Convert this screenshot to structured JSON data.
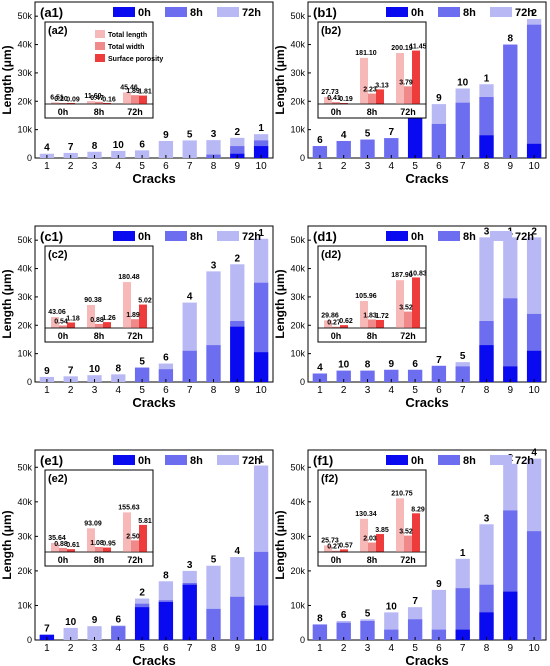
{
  "colors": {
    "c0h": "#0a0af0",
    "c8h": "#6d6df0",
    "c72h": "#b8b8f5",
    "insetLen": "#f7b8b8",
    "insetWid": "#f08a8a",
    "insetPor": "#ee3b3b"
  },
  "legend": [
    "0h",
    "8h",
    "72h"
  ],
  "insetLegend": [
    "Total length",
    "Total width",
    "Surface porosity"
  ],
  "xlabel": "Cracks",
  "ylabel": "Length (μm)",
  "yticks": [
    "0",
    "10k",
    "20k",
    "30k",
    "40k",
    "50k"
  ],
  "chart_data": [
    {
      "type": "bar",
      "panel": "(a1)",
      "ylim": [
        0,
        55000
      ],
      "categories": [
        "1",
        "2",
        "3",
        "4",
        "5",
        "6",
        "7",
        "8",
        "9",
        "10"
      ],
      "series": [
        {
          "name": "0h",
          "values": [
            0,
            0,
            0,
            0,
            0,
            0,
            0,
            0,
            1500,
            4200
          ]
        },
        {
          "name": "8h",
          "values": [
            0,
            0,
            0,
            0,
            0,
            0,
            0,
            1200,
            4200,
            6200
          ]
        },
        {
          "name": "72h",
          "values": [
            1500,
            1800,
            2200,
            2500,
            2700,
            6000,
            6200,
            6300,
            7100,
            8400
          ]
        }
      ],
      "labels": [
        "4",
        "7",
        "8",
        "10",
        "6",
        "9",
        "5",
        "3",
        "2",
        "1"
      ],
      "inset": {
        "title": "(a2)",
        "groups": [
          "0h",
          "8h",
          "72h"
        ],
        "values": [
          [
            6.51,
            0.2,
            0.09
          ],
          [
            11.6,
            0.47,
            0.16
          ],
          [
            45.46,
            1.89,
            1.81
          ]
        ],
        "labels": [
          [
            "6.51",
            "0.20",
            "0.09"
          ],
          [
            "11.60",
            "0.47",
            "0.16"
          ],
          [
            "45.46",
            "1.89",
            "1.81"
          ]
        ],
        "legend": true
      }
    },
    {
      "type": "bar",
      "panel": "(b1)",
      "ylim": [
        0,
        55000
      ],
      "categories": [
        "1",
        "2",
        "3",
        "4",
        "5",
        "6",
        "7",
        "8",
        "9",
        "10"
      ],
      "series": [
        {
          "name": "0h",
          "values": [
            0,
            0,
            0,
            0,
            14000,
            0,
            0,
            8000,
            0,
            5000
          ]
        },
        {
          "name": "8h",
          "values": [
            4200,
            6000,
            6500,
            7000,
            16000,
            12000,
            19500,
            21500,
            40000,
            47000
          ]
        },
        {
          "name": "72h",
          "values": [
            4200,
            6000,
            6500,
            7000,
            16500,
            19000,
            24500,
            26000,
            40000,
            49000
          ]
        }
      ],
      "labels": [
        "6",
        "4",
        "5",
        "7",
        "3",
        "9",
        "10",
        "1",
        "8",
        "2"
      ],
      "inset": {
        "title": "(b2)",
        "groups": [
          "0h",
          "8h",
          "72h"
        ],
        "values": [
          [
            27.73,
            0.41,
            0.19
          ],
          [
            181.1,
            2.23,
            3.13
          ],
          [
            200.19,
            3.79,
            11.45
          ]
        ],
        "labels": [
          [
            "27.73",
            "0.41",
            "0.19"
          ],
          [
            "181.10",
            "2.23",
            "3.13"
          ],
          [
            "200.19",
            "3.79",
            "11.45"
          ]
        ],
        "legend": false
      }
    },
    {
      "type": "bar",
      "panel": "(c1)",
      "ylim": [
        0,
        55000
      ],
      "categories": [
        "1",
        "2",
        "3",
        "4",
        "5",
        "6",
        "7",
        "8",
        "9",
        "10"
      ],
      "series": [
        {
          "name": "0h",
          "values": [
            0,
            0,
            0,
            0,
            0,
            0,
            0,
            0,
            19500,
            10500
          ]
        },
        {
          "name": "8h",
          "values": [
            0,
            0,
            0,
            0,
            5000,
            4500,
            11000,
            13000,
            21500,
            35000
          ]
        },
        {
          "name": "72h",
          "values": [
            1800,
            2000,
            2400,
            2700,
            5200,
            6500,
            28000,
            39000,
            41500,
            50500
          ]
        }
      ],
      "labels": [
        "9",
        "7",
        "10",
        "8",
        "5",
        "6",
        "4",
        "3",
        "2",
        "1"
      ],
      "inset": {
        "title": "(c2)",
        "groups": [
          "0h",
          "8h",
          "72h"
        ],
        "values": [
          [
            43.06,
            0.54,
            1.18
          ],
          [
            90.38,
            0.88,
            1.26
          ],
          [
            180.48,
            1.89,
            5.02
          ]
        ],
        "labels": [
          [
            "43.06",
            "0.54",
            "1.18"
          ],
          [
            "90.38",
            "0.88",
            "1.26"
          ],
          [
            "180.48",
            "1.89",
            "5.02"
          ]
        ],
        "legend": false
      }
    },
    {
      "type": "bar",
      "panel": "(d1)",
      "ylim": [
        0,
        55000
      ],
      "categories": [
        "1",
        "2",
        "3",
        "4",
        "5",
        "6",
        "7",
        "8",
        "9",
        "10"
      ],
      "series": [
        {
          "name": "0h",
          "values": [
            0,
            0,
            0,
            0,
            0,
            0,
            0,
            13000,
            5500,
            11000
          ]
        },
        {
          "name": "8h",
          "values": [
            3000,
            4000,
            4000,
            4300,
            4300,
            5700,
            5500,
            21500,
            29500,
            24000
          ]
        },
        {
          "name": "72h",
          "values": [
            3000,
            4000,
            4000,
            4300,
            4300,
            5700,
            7000,
            51000,
            51000,
            51000
          ]
        }
      ],
      "labels": [
        "4",
        "10",
        "8",
        "9",
        "6",
        "7",
        "5",
        "3",
        "1",
        "2"
      ],
      "inset": {
        "title": "(d2)",
        "groups": [
          "0h",
          "8h",
          "72h"
        ],
        "values": [
          [
            29.86,
            0.27,
            0.62
          ],
          [
            105.96,
            1.83,
            1.72
          ],
          [
            187.9,
            3.52,
            10.83
          ]
        ],
        "labels": [
          [
            "29.86",
            "0.27",
            "0.62"
          ],
          [
            "105.96",
            "1.83",
            "1.72"
          ],
          [
            "187.90",
            "3.52",
            "10.83"
          ]
        ],
        "legend": false
      }
    },
    {
      "type": "bar",
      "panel": "(e1)",
      "ylim": [
        0,
        55000
      ],
      "categories": [
        "1",
        "2",
        "3",
        "4",
        "5",
        "6",
        "7",
        "8",
        "9",
        "10"
      ],
      "series": [
        {
          "name": "0h",
          "values": [
            1500,
            0,
            0,
            0,
            9500,
            11000,
            16000,
            0,
            0,
            10000
          ]
        },
        {
          "name": "8h",
          "values": [
            1500,
            0,
            0,
            4000,
            10500,
            11500,
            16500,
            9000,
            12500,
            25500
          ]
        },
        {
          "name": "72h",
          "values": [
            1600,
            3500,
            4000,
            4200,
            12000,
            17000,
            20000,
            21500,
            24000,
            50500
          ]
        }
      ],
      "labels": [
        "7",
        "10",
        "9",
        "6",
        "2",
        "8",
        "3",
        "5",
        "4",
        "1"
      ],
      "inset": {
        "title": "(e2)",
        "groups": [
          "0h",
          "8h",
          "72h"
        ],
        "values": [
          [
            35.64,
            0.88,
            0.61
          ],
          [
            93.09,
            1.08,
            0.95
          ],
          [
            155.63,
            2.5,
            5.81
          ]
        ],
        "labels": [
          [
            "35.64",
            "0.88",
            "0.61"
          ],
          [
            "93.09",
            "1.08",
            "0.95"
          ],
          [
            "155.63",
            "2.50",
            "5.81"
          ]
        ],
        "legend": false
      }
    },
    {
      "type": "bar",
      "panel": "(f1)",
      "ylim": [
        0,
        55000
      ],
      "categories": [
        "1",
        "2",
        "3",
        "4",
        "5",
        "6",
        "7",
        "8",
        "9",
        "10"
      ],
      "series": [
        {
          "name": "0h",
          "values": [
            0,
            0,
            0,
            0,
            0,
            0,
            3000,
            8000,
            14000,
            0
          ]
        },
        {
          "name": "8h",
          "values": [
            4500,
            5000,
            5500,
            3000,
            6000,
            3000,
            15000,
            16000,
            37500,
            31500
          ]
        },
        {
          "name": "72h",
          "values": [
            4500,
            5500,
            6000,
            8000,
            9500,
            14500,
            23500,
            33500,
            51000,
            52500
          ]
        }
      ],
      "labels": [
        "8",
        "6",
        "5",
        "10",
        "7",
        "9",
        "1",
        "3",
        "2",
        "4"
      ],
      "inset": {
        "title": "(f2)",
        "groups": [
          "0h",
          "8h",
          "72h"
        ],
        "values": [
          [
            25.73,
            0.27,
            0.57
          ],
          [
            130.34,
            2.03,
            3.85
          ],
          [
            210.75,
            3.52,
            8.29
          ]
        ],
        "labels": [
          [
            "25.73",
            "0.27",
            "0.57"
          ],
          [
            "130.34",
            "2.03",
            "3.85"
          ],
          [
            "210.75",
            "3.52",
            "8.29"
          ]
        ],
        "legend": false
      }
    }
  ]
}
